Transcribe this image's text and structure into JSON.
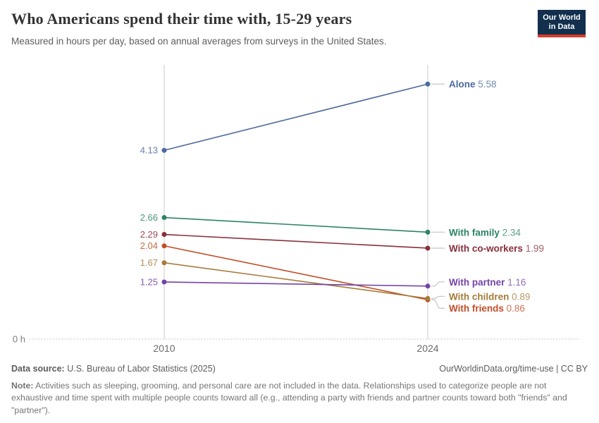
{
  "header": {
    "title": "Who Americans spend their time with, 15-29 years",
    "subtitle": "Measured in hours per day, based on annual averages from surveys in the United States.",
    "logo": {
      "line1": "Our World",
      "line2": "in Data",
      "bg": "#12304D",
      "accent": "#D93B2B"
    }
  },
  "chart_data": {
    "type": "line",
    "variant": "slope",
    "title": "Who Americans spend their time with, 15-29 years",
    "subtitle": "Measured in hours per day, based on annual averages from surveys in the United States.",
    "x": [
      2010,
      2024
    ],
    "series": [
      {
        "name": "Alone",
        "values": [
          4.13,
          5.58
        ],
        "color": "#4C6A9C"
      },
      {
        "name": "With family",
        "values": [
          2.66,
          2.34
        ],
        "color": "#2C8465"
      },
      {
        "name": "With co-workers",
        "values": [
          2.29,
          1.99
        ],
        "color": "#883039"
      },
      {
        "name": "With friends",
        "values": [
          2.04,
          0.86
        ],
        "color": "#C14E28"
      },
      {
        "name": "With children",
        "values": [
          1.67,
          0.89
        ],
        "color": "#A57C3B"
      },
      {
        "name": "With partner",
        "values": [
          1.25,
          1.16
        ],
        "color": "#7443A6"
      }
    ],
    "ylim": [
      0,
      6
    ],
    "baseline_label": "0 h",
    "grid": "x-gridlines-only",
    "legend_position": "right-inline-labels",
    "value_decimals": 2
  },
  "footer": {
    "datasource_label": "Data source:",
    "datasource": " U.S. Bureau of Labor Statistics (2025)",
    "attribution": "OurWorldinData.org/time-use | CC BY",
    "note_label": "Note:",
    "note": " Activities such as sleeping, grooming, and personal care are not included in the data. Relationships used to categorize people are not exhaustive and time spent with multiple people counts toward all (e.g., attending a party with friends and partner counts toward both \"friends\" and \"partner\")."
  }
}
